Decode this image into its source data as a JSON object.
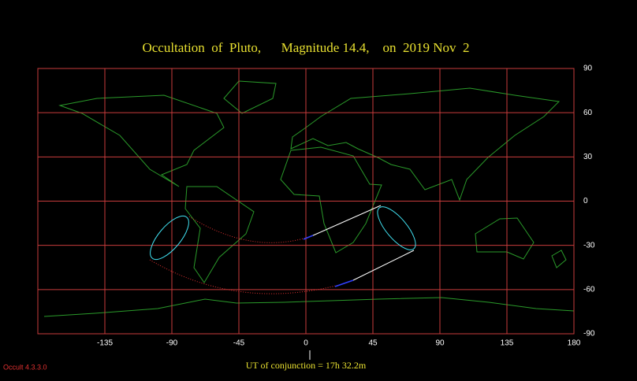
{
  "chart_data": {
    "type": "map",
    "title": "Occultation  of  Pluto,      Magnitude 14.4,    on  2019 Nov  2",
    "caption": "UT of conjunction = 17h 32.2m",
    "xlim": [
      -180,
      180
    ],
    "ylim": [
      -90,
      90
    ],
    "xticks": [
      -135,
      -90,
      -45,
      0,
      45,
      90,
      135,
      180
    ],
    "yticks": [
      90,
      60,
      30,
      0,
      -30,
      -60,
      -90
    ],
    "grid": true,
    "grid_color": "#c83c3c"
  },
  "footer": "Occult 4.3.3.0"
}
